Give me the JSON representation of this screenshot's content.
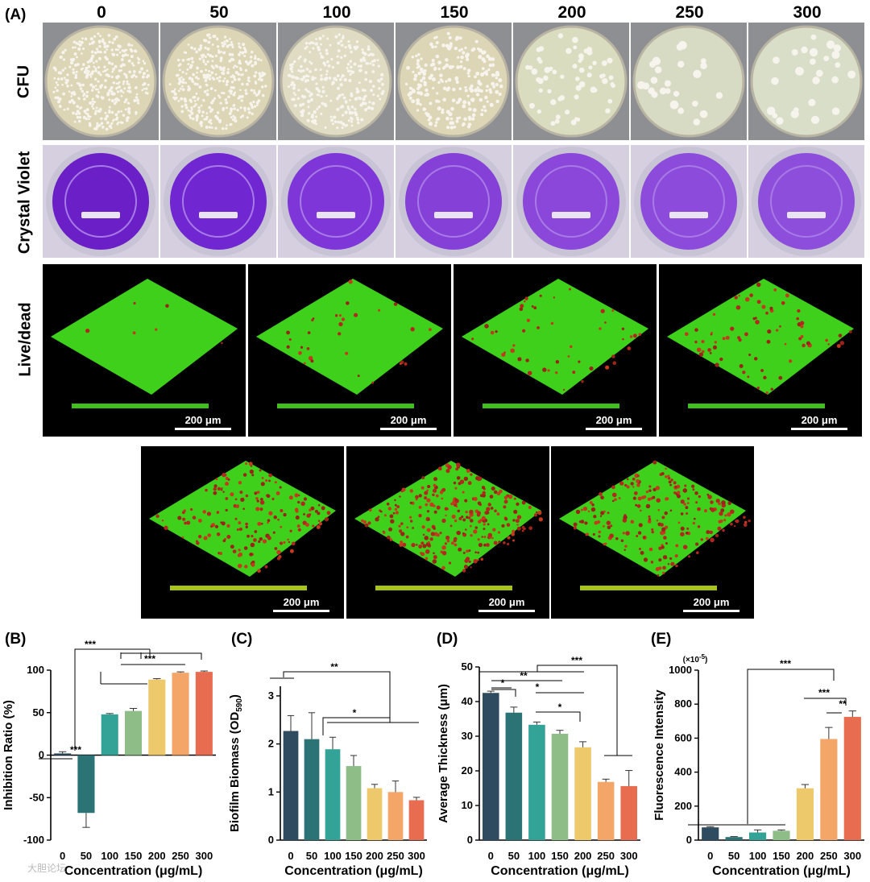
{
  "figure": {
    "panel_a_label": "(A)",
    "panel_b_label": "(B)",
    "panel_c_label": "(C)",
    "panel_d_label": "(D)",
    "panel_e_label": "(E)",
    "concentrations": [
      "0",
      "50",
      "100",
      "150",
      "200",
      "250",
      "300"
    ],
    "row_labels": {
      "cfu": "CFU",
      "cv": "Crystal Violet",
      "ld": "Live/dead"
    },
    "scale_bar_text": "200 μm",
    "watermark": "大胆论坛"
  },
  "chart_data": [
    {
      "type": "bar",
      "panel": "(B)",
      "categories": [
        "0",
        "50",
        "100",
        "150",
        "200",
        "250",
        "300"
      ],
      "values": [
        2,
        -68,
        48,
        52,
        89,
        97,
        98
      ],
      "errors": [
        2,
        17,
        1,
        3,
        1,
        1,
        1
      ],
      "xlabel": "Concentration (μg/mL)",
      "ylabel": "Inhibition Ratio (%)",
      "ylim": [
        -100,
        100
      ],
      "yticks": [
        "-100",
        "-50",
        "0",
        "50",
        "100"
      ],
      "colors": [
        "#2e4b5f",
        "#2c7376",
        "#34a397",
        "#8ebd87",
        "#edc96c",
        "#f3a667",
        "#e86c4f"
      ],
      "significance": [
        "***",
        "***",
        "***"
      ]
    },
    {
      "type": "bar",
      "panel": "(C)",
      "categories": [
        "0",
        "50",
        "100",
        "150",
        "200",
        "250",
        "300"
      ],
      "values": [
        2.27,
        2.1,
        1.89,
        1.54,
        1.08,
        1.0,
        0.83
      ],
      "errors": [
        0.32,
        0.55,
        0.25,
        0.22,
        0.08,
        0.23,
        0.06
      ],
      "xlabel": "Concentration (μg/mL)",
      "ylabel": "Biofilm Biomass (OD590)",
      "ylabel_main": "Biofilm Biomass (OD",
      "ylabel_sub": "590",
      "ylabel_end": ")",
      "ylim": [
        0,
        3.2
      ],
      "yticks": [
        "0",
        "1",
        "2",
        "3"
      ],
      "colors": [
        "#2e4b5f",
        "#2c7376",
        "#34a397",
        "#8ebd87",
        "#edc96c",
        "#f3a667",
        "#e86c4f"
      ],
      "significance": [
        "**",
        "*"
      ]
    },
    {
      "type": "bar",
      "panel": "(D)",
      "categories": [
        "0",
        "50",
        "100",
        "150",
        "200",
        "250",
        "300"
      ],
      "values": [
        42.5,
        36.8,
        33.3,
        30.7,
        26.8,
        16.8,
        15.6
      ],
      "errors": [
        0.5,
        1.6,
        0.8,
        1.0,
        1.6,
        0.8,
        4.5
      ],
      "xlabel": "Concentration (μg/mL)",
      "ylabel": "Average Thickness (μm)",
      "ylim": [
        0,
        50
      ],
      "yticks": [
        "0",
        "10",
        "20",
        "30",
        "40",
        "50"
      ],
      "colors": [
        "#2e4b5f",
        "#2c7376",
        "#34a397",
        "#8ebd87",
        "#edc96c",
        "#f3a667",
        "#e86c4f"
      ],
      "significance": [
        "***",
        "**",
        "*",
        "*",
        "*"
      ]
    },
    {
      "type": "bar",
      "panel": "(E)",
      "categories": [
        "0",
        "50",
        "100",
        "150",
        "200",
        "250",
        "300"
      ],
      "values": [
        75,
        18,
        45,
        55,
        305,
        595,
        725
      ],
      "errors": [
        4,
        3,
        15,
        5,
        22,
        68,
        35
      ],
      "xlabel": "Concentration (μg/mL)",
      "ylabel": "Fluorescence Intensity",
      "scale_note": "(×10",
      "scale_note_sup": "-5",
      "scale_note_end": ")",
      "ylim": [
        0,
        1000
      ],
      "yticks": [
        "0",
        "200",
        "400",
        "600",
        "800",
        "1000"
      ],
      "colors": [
        "#2e4b5f",
        "#2c7376",
        "#34a397",
        "#8ebd87",
        "#edc96c",
        "#f3a667",
        "#e86c4f"
      ],
      "significance": [
        "***",
        "***",
        "**"
      ]
    }
  ]
}
